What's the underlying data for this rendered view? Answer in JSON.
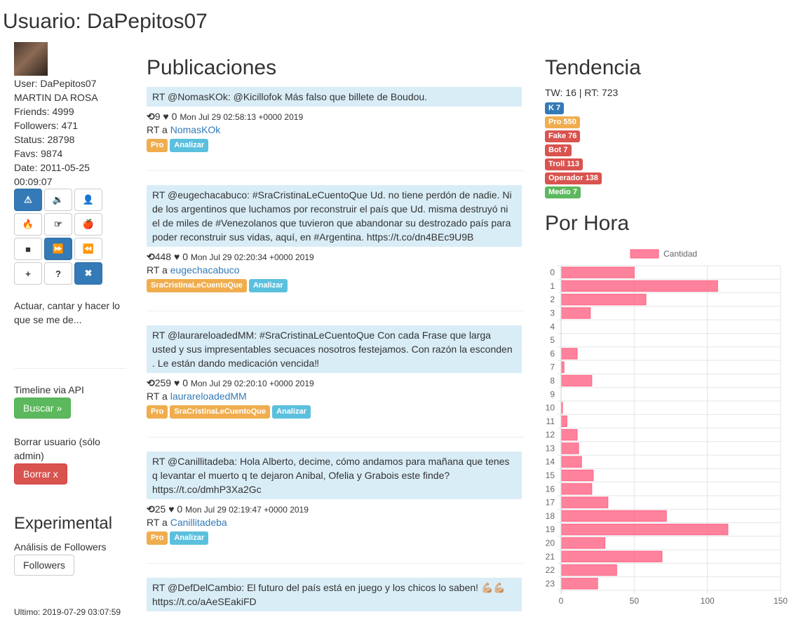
{
  "page_title": "Usuario: DaPepitos07",
  "profile": {
    "user": "User: DaPepitos07",
    "name": "MARTIN DA ROSA",
    "friends": "Friends: 4999",
    "followers": "Followers: 471",
    "status": "Status: 28798",
    "favs": "Favs: 9874",
    "date_line1": "Date: 2011-05-25",
    "date_line2": "00:09:07",
    "bio": "Actuar, cantar y hacer lo que se me de..."
  },
  "action_buttons": [
    {
      "icon": "warning-icon",
      "glyph": "⚠",
      "primary": true
    },
    {
      "icon": "volume-icon",
      "glyph": "🔉",
      "primary": false
    },
    {
      "icon": "user-icon",
      "glyph": "👤",
      "primary": false
    },
    {
      "icon": "fire-icon",
      "glyph": "🔥",
      "primary": false
    },
    {
      "icon": "hand-point-icon",
      "glyph": "☞",
      "primary": false
    },
    {
      "icon": "apple-icon",
      "glyph": "🍎",
      "primary": false
    },
    {
      "icon": "video-camera-icon",
      "glyph": "■",
      "primary": false
    },
    {
      "icon": "fast-forward-icon",
      "glyph": "⏩",
      "primary": true
    },
    {
      "icon": "rewind-icon",
      "glyph": "⏪",
      "primary": false
    },
    {
      "icon": "plus-icon",
      "glyph": "+",
      "primary": false
    },
    {
      "icon": "question-icon",
      "glyph": "?",
      "primary": false
    },
    {
      "icon": "close-icon",
      "glyph": "✖",
      "primary": true
    }
  ],
  "timeline": {
    "label": "Timeline via API",
    "button": "Buscar »"
  },
  "delete_user": {
    "label": "Borrar usuario (sólo admin)",
    "button": "Borrar x"
  },
  "experimental": {
    "heading": "Experimental",
    "label": "Análisis de Followers",
    "button": "Followers"
  },
  "last_update": "Ultimo: 2019-07-29 03:07:59",
  "publications": {
    "heading": "Publicaciones",
    "ra_prefix": "RT a",
    "tweets": [
      {
        "text": "RT @NomasKOk: @Kicillofok Más falso que billete de Boudou.",
        "retweets": "9",
        "likes": "0",
        "date": "Mon Jul 29 02:58:13 +0000 2019",
        "rt_user": "NomasKOk",
        "labels": [
          {
            "text": "Pro",
            "kind": "warning"
          },
          {
            "text": "Analizar",
            "kind": "info"
          }
        ]
      },
      {
        "text": "RT @eugechacabuco: #SraCristinaLeCuentoQue Ud. no tiene perdón de nadie. Ni de los argentinos que luchamos por reconstruir el país que Ud. misma destruyó ni el de miles de #Venezolanos que tuvieron que abandonar su destrozado país para poder reconstruir sus vidas, aquí, en #Argentina. https://t.co/dn4BEc9U9B",
        "retweets": "448",
        "likes": "0",
        "date": "Mon Jul 29 02:20:34 +0000 2019",
        "rt_user": "eugechacabuco",
        "labels": [
          {
            "text": "SraCristinaLeCuentoQue",
            "kind": "warning"
          },
          {
            "text": "Analizar",
            "kind": "info"
          }
        ]
      },
      {
        "text": "RT @laurareloadedMM: #SraCristinaLeCuentoQue Con cada Frase que larga usted y sus impresentables secuaces nosotros festejamos. Con razón la esconden . Le están dando medicación vencida‼",
        "retweets": "259",
        "likes": "0",
        "date": "Mon Jul 29 02:20:10 +0000 2019",
        "rt_user": "laurareloadedMM",
        "labels": [
          {
            "text": "Pro",
            "kind": "warning"
          },
          {
            "text": "SraCristinaLeCuentoQue",
            "kind": "warning"
          },
          {
            "text": "Analizar",
            "kind": "info"
          }
        ]
      },
      {
        "text": "RT @Canillitadeba: Hola Alberto, decime, cómo andamos para mañana que tenes q levantar el muerto q te dejaron Anibal, Ofelia y Grabois este finde? https://t.co/dmhP3Xa2Gc",
        "retweets": "25",
        "likes": "0",
        "date": "Mon Jul 29 02:19:47 +0000 2019",
        "rt_user": "Canillitadeba",
        "labels": [
          {
            "text": "Pro",
            "kind": "warning"
          },
          {
            "text": "Analizar",
            "kind": "info"
          }
        ]
      },
      {
        "text": "RT @DefDelCambio: El futuro del país está en juego y los chicos lo saben! 💪🏼💪🏼 https://t.co/aAeSEakiFD",
        "retweets": "",
        "likes": "",
        "date": "",
        "rt_user": "",
        "labels": []
      }
    ]
  },
  "trend": {
    "heading": "Tendencia",
    "summary": "TW: 16 | RT: 723",
    "labels": [
      {
        "text": "K 7",
        "kind": "primary"
      },
      {
        "text": "Pro 550",
        "kind": "warning"
      },
      {
        "text": "Fake 76",
        "kind": "danger"
      },
      {
        "text": "Bot 7",
        "kind": "danger"
      },
      {
        "text": "Troll 113",
        "kind": "danger"
      },
      {
        "text": "Operador 138",
        "kind": "danger"
      },
      {
        "text": "Medio 7",
        "kind": "success"
      }
    ]
  },
  "hourly": {
    "heading": "Por Hora"
  },
  "chart_data": {
    "type": "bar",
    "orientation": "horizontal",
    "categories": [
      "0",
      "1",
      "2",
      "3",
      "4",
      "5",
      "6",
      "7",
      "8",
      "9",
      "10",
      "11",
      "12",
      "13",
      "14",
      "15",
      "16",
      "17",
      "18",
      "19",
      "20",
      "21",
      "22",
      "23"
    ],
    "series": [
      {
        "name": "Cantidad",
        "values": [
          50,
          107,
          58,
          20,
          0,
          0,
          11,
          2,
          21,
          0,
          1,
          4,
          11,
          12,
          14,
          22,
          21,
          32,
          72,
          114,
          30,
          69,
          38,
          25
        ]
      }
    ],
    "xlim": [
      0,
      150
    ],
    "xticks": [
      "0",
      "50",
      "100",
      "150"
    ],
    "grid": true,
    "legend": "top",
    "color": "#ff6384"
  }
}
